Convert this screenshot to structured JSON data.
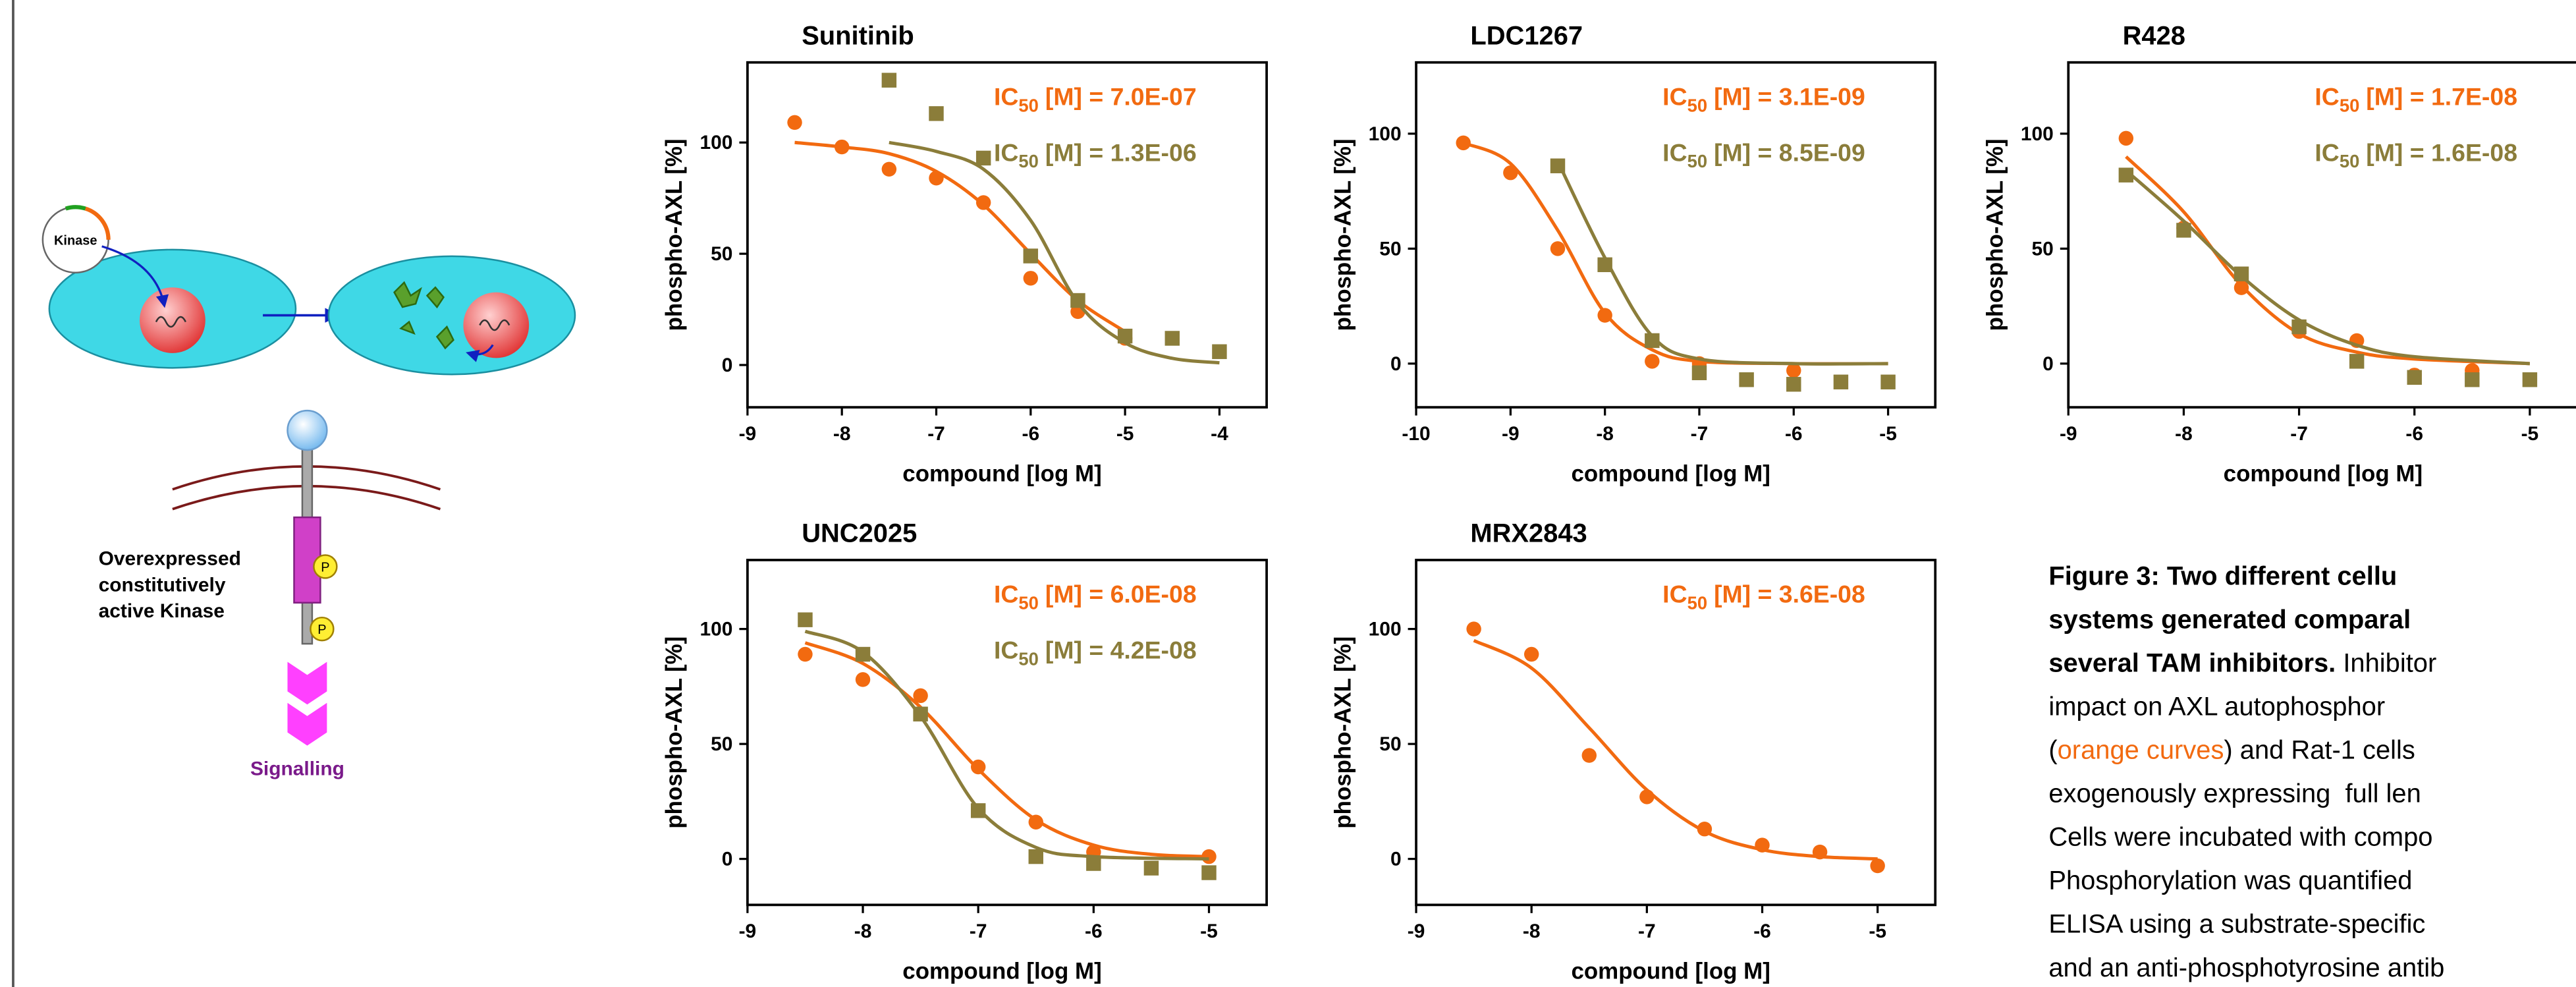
{
  "chart_data": [
    {
      "type": "scatter",
      "title": "Sunitinib",
      "xlabel": "compound [log M]",
      "ylabel": "phospho-AXL [%]",
      "xlim": [
        -9,
        -3.5
      ],
      "xticks": [
        -9,
        -8,
        -7,
        -6,
        -5,
        -4
      ],
      "ylim": [
        -19,
        136
      ],
      "yticks": [
        0,
        50,
        100
      ],
      "annotations": [
        {
          "prefix": "IC",
          "subscript": "50",
          "text": "[M] = 7.0E-07",
          "color": "#f26a10"
        },
        {
          "prefix": "IC",
          "subscript": "50",
          "text": "[M] = 1.3E-06",
          "color": "#8b7d3a"
        }
      ],
      "series": [
        {
          "color": "#f26a10",
          "marker": "circle",
          "x": [
            -8.5,
            -8,
            -7.5,
            -7,
            -6.5,
            -6,
            -5.5,
            -5
          ],
          "values": [
            109,
            98,
            88,
            84,
            73,
            39,
            24,
            12
          ],
          "fit": {
            "x": [
              -8.5,
              -8,
              -7.5,
              -7,
              -6.5,
              -6,
              -5.5,
              -5
            ],
            "values": [
              100,
              98,
              95,
              87,
              72,
              50,
              29,
              15
            ]
          }
        },
        {
          "color": "#8b7d3a",
          "marker": "square",
          "x": [
            -7.5,
            -7,
            -6.5,
            -6,
            -5.5,
            -5,
            -4.5,
            -4
          ],
          "values": [
            128,
            113,
            93,
            49,
            29,
            13,
            12,
            6
          ],
          "fit": {
            "x": [
              -7.5,
              -7,
              -6.5,
              -6,
              -5.5,
              -5,
              -4.5,
              -4
            ],
            "values": [
              100,
              96,
              88,
              65,
              28,
              10,
              3,
              1
            ]
          }
        }
      ]
    },
    {
      "type": "scatter",
      "title": "LDC1267",
      "xlabel": "compound [log M]",
      "ylabel": "phospho-AXL [%]",
      "xlim": [
        -10,
        -4.5
      ],
      "xticks": [
        -10,
        -9,
        -8,
        -7,
        -6,
        -5
      ],
      "ylim": [
        -19,
        131
      ],
      "yticks": [
        0,
        50,
        100
      ],
      "annotations": [
        {
          "prefix": "IC",
          "subscript": "50",
          "text": "[M] = 3.1E-09",
          "color": "#f26a10"
        },
        {
          "prefix": "IC",
          "subscript": "50",
          "text": "[M] = 8.5E-09",
          "color": "#8b7d3a"
        }
      ],
      "series": [
        {
          "color": "#f26a10",
          "marker": "circle",
          "x": [
            -9.5,
            -9,
            -8.5,
            -8,
            -7.5,
            -7,
            -6
          ],
          "values": [
            96,
            83,
            50,
            21,
            1,
            0,
            -3
          ],
          "fit": {
            "x": [
              -9.5,
              -9,
              -8.5,
              -8,
              -7.5,
              -7,
              -6,
              -5
            ],
            "values": [
              96,
              87,
              58,
              22,
              6,
              1,
              0,
              0
            ]
          }
        },
        {
          "color": "#8b7d3a",
          "marker": "square",
          "x": [
            -8.5,
            -8,
            -7.5,
            -7,
            -6.5,
            -6,
            -5.5,
            -5
          ],
          "values": [
            86,
            43,
            10,
            -4,
            -7,
            -9,
            -8,
            -8
          ],
          "fit": {
            "x": [
              -8.5,
              -8,
              -7.5,
              -7,
              -6,
              -5
            ],
            "values": [
              88,
              46,
              12,
              2,
              0,
              0
            ]
          }
        }
      ]
    },
    {
      "type": "scatter",
      "title": "R428",
      "xlabel": "compound [log M]",
      "ylabel": "phospho-AXL [%]",
      "xlim": [
        -9,
        -4.5
      ],
      "xticks": [
        -9,
        -8,
        -7,
        -6,
        -5
      ],
      "ylim": [
        -19,
        131
      ],
      "yticks": [
        0,
        50,
        100
      ],
      "annotations": [
        {
          "prefix": "IC",
          "subscript": "50",
          "text": "[M] = 1.7E-08",
          "color": "#f26a10"
        },
        {
          "prefix": "IC",
          "subscript": "50",
          "text": "[M] = 1.6E-08",
          "color": "#8b7d3a"
        }
      ],
      "series": [
        {
          "color": "#f26a10",
          "marker": "circle",
          "x": [
            -8.5,
            -8,
            -7.5,
            -7,
            -6.5,
            -6,
            -5.5
          ],
          "values": [
            98,
            59,
            33,
            14,
            10,
            -5,
            -3
          ],
          "fit": {
            "x": [
              -8.5,
              -8,
              -7.5,
              -7,
              -6.5,
              -6,
              -5
            ],
            "values": [
              90,
              66,
              34,
              13,
              5,
              2,
              0
            ]
          }
        },
        {
          "color": "#8b7d3a",
          "marker": "square",
          "x": [
            -8.5,
            -8,
            -7.5,
            -7,
            -6.5,
            -6,
            -5.5,
            -5
          ],
          "values": [
            82,
            58,
            39,
            16,
            1,
            -6,
            -7,
            -7
          ],
          "fit": {
            "x": [
              -8.5,
              -8,
              -7.5,
              -7,
              -6.5,
              -6,
              -5
            ],
            "values": [
              84,
              62,
              38,
              19,
              8,
              3,
              0
            ]
          }
        }
      ]
    },
    {
      "type": "scatter",
      "title": "UNC2025",
      "xlabel": "compound [log M]",
      "ylabel": "phospho-AXL [%]",
      "xlim": [
        -9,
        -4.5
      ],
      "xticks": [
        -9,
        -8,
        -7,
        -6,
        -5
      ],
      "ylim": [
        -20,
        130
      ],
      "yticks": [
        0,
        50,
        100
      ],
      "annotations": [
        {
          "prefix": "IC",
          "subscript": "50",
          "text": "[M] = 6.0E-08",
          "color": "#f26a10"
        },
        {
          "prefix": "IC",
          "subscript": "50",
          "text": "[M] = 4.2E-08",
          "color": "#8b7d3a"
        }
      ],
      "series": [
        {
          "color": "#f26a10",
          "marker": "circle",
          "x": [
            -8.5,
            -8,
            -7.5,
            -7,
            -6.5,
            -6,
            -5
          ],
          "values": [
            89,
            78,
            71,
            40,
            16,
            3,
            1
          ],
          "fit": {
            "x": [
              -8.5,
              -8,
              -7.5,
              -7,
              -6.5,
              -6,
              -5.5,
              -5
            ],
            "values": [
              94,
              85,
              66,
              39,
              17,
              6,
              2,
              1
            ]
          }
        },
        {
          "color": "#8b7d3a",
          "marker": "square",
          "x": [
            -8.5,
            -8,
            -7.5,
            -7,
            -6.5,
            -6,
            -5.5,
            -5
          ],
          "values": [
            104,
            89,
            63,
            21,
            1,
            -2,
            -4,
            -6
          ],
          "fit": {
            "x": [
              -8.5,
              -8,
              -7.5,
              -7,
              -6.5,
              -6,
              -5
            ],
            "values": [
              99,
              90,
              62,
              22,
              5,
              1,
              0
            ]
          }
        }
      ]
    },
    {
      "type": "scatter",
      "title": "MRX2843",
      "xlabel": "compound [log M]",
      "ylabel": "phospho-AXL [%]",
      "xlim": [
        -9,
        -4.5
      ],
      "xticks": [
        -9,
        -8,
        -7,
        -6,
        -5
      ],
      "ylim": [
        -20,
        130
      ],
      "yticks": [
        0,
        50,
        100
      ],
      "annotations": [
        {
          "prefix": "IC",
          "subscript": "50",
          "text": "[M] = 3.6E-08",
          "color": "#f26a10"
        }
      ],
      "series": [
        {
          "color": "#f26a10",
          "marker": "circle",
          "x": [
            -8.5,
            -8,
            -7.5,
            -7,
            -6.5,
            -6,
            -5.5,
            -5
          ],
          "values": [
            100,
            89,
            45,
            27,
            13,
            6,
            3,
            -3
          ],
          "fit": {
            "x": [
              -8.5,
              -8,
              -7.5,
              -7,
              -6.5,
              -6,
              -5.5,
              -5
            ],
            "values": [
              95,
              83,
              57,
              30,
              12,
              4,
              1,
              0
            ]
          }
        }
      ]
    }
  ],
  "diagram": {
    "plasmid": "Kinase",
    "receptor_label": [
      "Overexpressed",
      "constitutively",
      "active Kinase"
    ],
    "signal": "Signalling"
  },
  "caption": [
    [
      {
        "text": "Figure 3: Two different cellu",
        "bold": true
      }
    ],
    [
      {
        "text": "systems generated comparal",
        "bold": true
      }
    ],
    [
      {
        "text": "several TAM inhibitors.",
        "bold": true
      },
      {
        "text": " Inhibitor"
      }
    ],
    [
      {
        "text": "impact on AXL autophosphor"
      }
    ],
    [
      {
        "text": "("
      },
      {
        "text": "orange curves",
        "color": "#f26a10"
      },
      {
        "text": ") and Rat-1 cells"
      }
    ],
    [
      {
        "text": "exogenously expressing  full len"
      }
    ],
    [
      {
        "text": "Cells were incubated with compo"
      }
    ],
    [
      {
        "text": "Phosphorylation was quantified"
      }
    ],
    [
      {
        "text": "ELISA using a substrate-specific"
      }
    ],
    [
      {
        "text": "and an anti-phosphotyrosine antib"
      }
    ]
  ]
}
